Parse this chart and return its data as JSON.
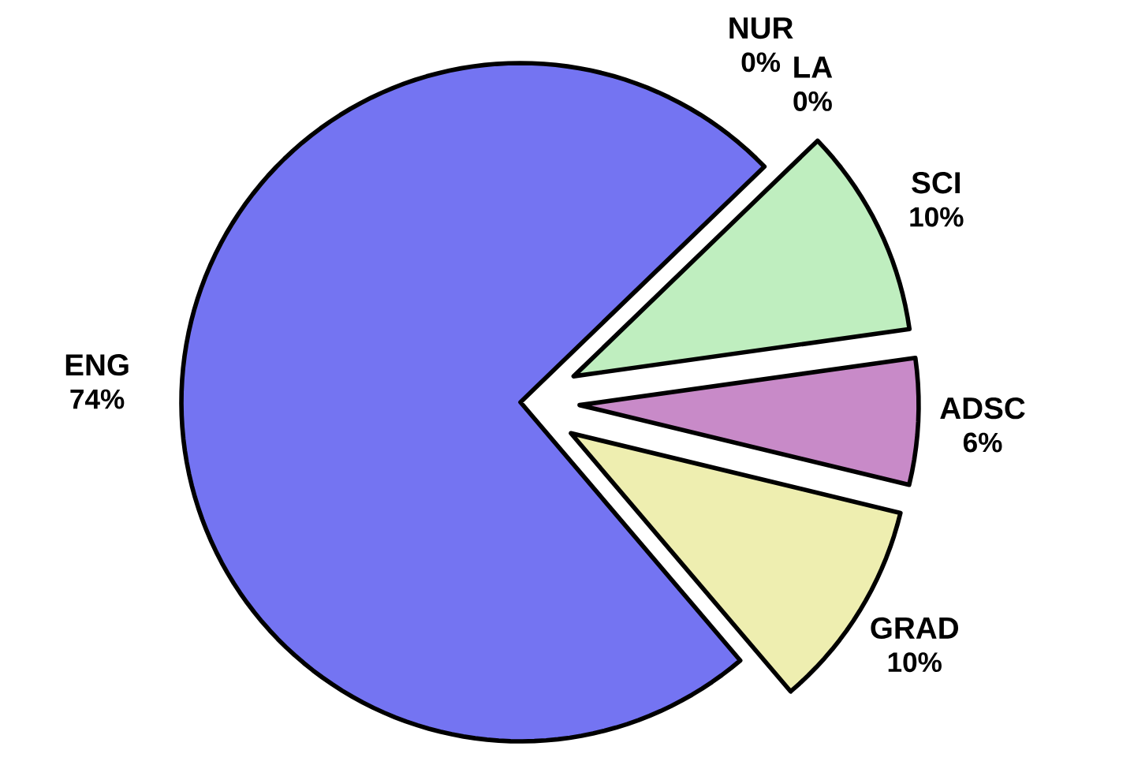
{
  "chart_data": {
    "type": "pie",
    "categories": [
      "ENG",
      "GRAD",
      "ADSC",
      "SCI",
      "LA",
      "NUR"
    ],
    "values": [
      74,
      10,
      6,
      10,
      0,
      0
    ],
    "value_labels": [
      "74%",
      "10%",
      "6%",
      "10%",
      "0%",
      "0%"
    ],
    "colors": [
      "#7474f2",
      "#eeeeb0",
      "#c88ac8",
      "#bfeebf",
      "#c0c0ff",
      "#ffc0c0"
    ]
  }
}
